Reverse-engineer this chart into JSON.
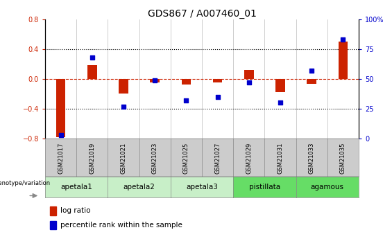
{
  "title": "GDS867 / A007460_01",
  "samples": [
    "GSM21017",
    "GSM21019",
    "GSM21021",
    "GSM21023",
    "GSM21025",
    "GSM21027",
    "GSM21029",
    "GSM21031",
    "GSM21033",
    "GSM21035"
  ],
  "log_ratio": [
    -0.78,
    0.18,
    -0.2,
    -0.05,
    -0.08,
    -0.05,
    0.12,
    -0.18,
    -0.07,
    0.5
  ],
  "percentile_rank": [
    3,
    68,
    27,
    49,
    32,
    35,
    47,
    30,
    57,
    83
  ],
  "groups": [
    {
      "label": "apetala1",
      "start": 0,
      "end": 1,
      "color": "#c8efc8"
    },
    {
      "label": "apetala2",
      "start": 2,
      "end": 3,
      "color": "#c8efc8"
    },
    {
      "label": "apetala3",
      "start": 4,
      "end": 5,
      "color": "#c8efc8"
    },
    {
      "label": "pistillata",
      "start": 6,
      "end": 7,
      "color": "#66dd66"
    },
    {
      "label": "agamous",
      "start": 8,
      "end": 9,
      "color": "#66dd66"
    }
  ],
  "ylim_left": [
    -0.8,
    0.8
  ],
  "ylim_right": [
    0,
    100
  ],
  "yticks_left": [
    -0.8,
    -0.4,
    0.0,
    0.4,
    0.8
  ],
  "yticks_right": [
    0,
    25,
    50,
    75,
    100
  ],
  "bar_color_red": "#cc2200",
  "bar_color_blue": "#0000cc",
  "zero_line_color": "#cc2200",
  "title_fontsize": 10,
  "tick_fontsize": 7,
  "bar_width": 0.3,
  "sample_tick_bg": "#cccccc"
}
